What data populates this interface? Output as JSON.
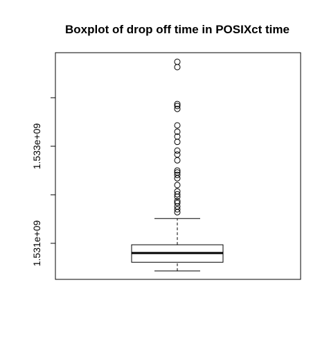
{
  "chart_data": {
    "type": "box",
    "title": "Boxplot of drop off time in POSIXct time",
    "ylim": [
      1530257000,
      1534928000
    ],
    "yticks": [
      {
        "value": 1531000000,
        "label": "1.531e+09"
      },
      {
        "value": 1532000000,
        "label": null
      },
      {
        "value": 1533000000,
        "label": "1.533e+09"
      },
      {
        "value": 1534000000,
        "label": null
      }
    ],
    "boxes": [
      {
        "min": 1530430000,
        "q1": 1530610000,
        "median": 1530800000,
        "q3": 1530970000,
        "max": 1531510000,
        "outliers": [
          1534740000,
          1534630000,
          1533870000,
          1533830000,
          1533770000,
          1533430000,
          1533300000,
          1533200000,
          1533090000,
          1532910000,
          1532830000,
          1532710000,
          1532500000,
          1532460000,
          1532410000,
          1532340000,
          1532200000,
          1532070000,
          1532010000,
          1531960000,
          1531870000,
          1531830000,
          1531760000,
          1531700000,
          1531640000
        ]
      }
    ]
  }
}
